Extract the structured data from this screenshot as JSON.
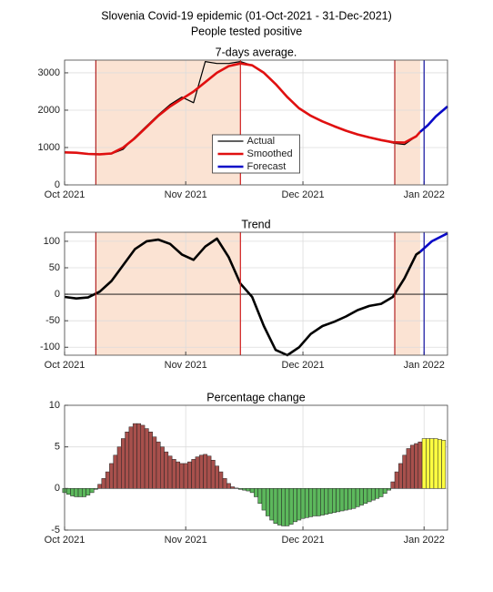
{
  "title": "Slovenia Covid-19 epidemic (01-Oct-2021 - 31-Dec-2021)",
  "subtitle": "People tested positive",
  "chart_data": [
    {
      "type": "line",
      "title": "7-days average.",
      "xlim": [
        0,
        98
      ],
      "ylim": [
        0,
        3340
      ],
      "xticks": [
        {
          "value": 0,
          "label": "Oct 2021"
        },
        {
          "value": 31,
          "label": "Nov 2021"
        },
        {
          "value": 61,
          "label": "Dec 2021"
        },
        {
          "value": 92,
          "label": "Jan 2022"
        }
      ],
      "yticks": [
        0,
        1000,
        2000,
        3000
      ],
      "grid": true,
      "legend": "south",
      "shaded": [
        [
          8,
          45
        ],
        [
          84.5,
          91
        ]
      ],
      "shade_color": "#fbe3d3",
      "vlines": [
        {
          "x": 8,
          "color": "#b22222"
        },
        {
          "x": 45,
          "color": "#d02020"
        },
        {
          "x": 84.5,
          "color": "#b22222"
        },
        {
          "x": 92,
          "color": "#1010a0"
        }
      ],
      "series": [
        {
          "name": "Actual",
          "color": "#000000",
          "width": 1.2,
          "x": [
            0,
            3,
            6,
            9,
            12,
            15,
            18,
            21,
            24,
            27,
            30,
            33,
            36,
            39,
            42,
            45,
            48,
            51,
            54,
            57,
            60,
            63,
            66,
            69,
            72,
            75,
            78,
            81,
            84,
            87,
            90,
            91
          ],
          "values": [
            880,
            860,
            820,
            810,
            830,
            950,
            1280,
            1580,
            1880,
            2150,
            2350,
            2200,
            3300,
            3250,
            3250,
            3300,
            3200,
            3000,
            2700,
            2330,
            2050,
            1850,
            1710,
            1560,
            1440,
            1350,
            1280,
            1200,
            1120,
            1080,
            1300,
            1420
          ]
        },
        {
          "name": "Smoothed",
          "color": "#e01010",
          "width": 2.6,
          "x": [
            0,
            3,
            6,
            9,
            12,
            15,
            18,
            21,
            24,
            27,
            30,
            33,
            36,
            39,
            42,
            45,
            48,
            51,
            54,
            57,
            60,
            63,
            66,
            69,
            72,
            75,
            78,
            81,
            84,
            87,
            90,
            91
          ],
          "values": [
            870,
            860,
            830,
            820,
            840,
            1000,
            1250,
            1550,
            1850,
            2100,
            2300,
            2500,
            2750,
            3000,
            3180,
            3250,
            3200,
            3000,
            2700,
            2350,
            2050,
            1850,
            1700,
            1570,
            1450,
            1350,
            1270,
            1200,
            1140,
            1130,
            1300,
            1420
          ]
        },
        {
          "name": "Forecast",
          "color": "#0a0ac8",
          "width": 2.6,
          "x": [
            91,
            93,
            95,
            98
          ],
          "values": [
            1420,
            1600,
            1830,
            2100
          ]
        }
      ]
    },
    {
      "type": "line",
      "title": "Trend",
      "xlim": [
        0,
        98
      ],
      "ylim": [
        -115,
        117
      ],
      "xticks": [
        {
          "value": 0,
          "label": "Oct 2021"
        },
        {
          "value": 31,
          "label": "Nov 2021"
        },
        {
          "value": 61,
          "label": "Dec 2021"
        },
        {
          "value": 92,
          "label": "Jan 2022"
        }
      ],
      "yticks": [
        -100,
        -50,
        0,
        50,
        100
      ],
      "grid": true,
      "zero_line": 0,
      "shaded": [
        [
          8,
          45
        ],
        [
          84.5,
          91
        ]
      ],
      "shade_color": "#fbe3d3",
      "vlines": [
        {
          "x": 8,
          "color": "#b22222"
        },
        {
          "x": 45,
          "color": "#d02020"
        },
        {
          "x": 84.5,
          "color": "#b22222"
        },
        {
          "x": 92,
          "color": "#1010a0"
        }
      ],
      "series": [
        {
          "color": "#000000",
          "width": 2.6,
          "x": [
            0,
            3,
            6,
            9,
            12,
            15,
            18,
            21,
            24,
            27,
            30,
            33,
            36,
            39,
            42,
            45,
            48,
            51,
            54,
            57,
            60,
            63,
            66,
            69,
            72,
            75,
            78,
            81,
            84,
            87,
            90,
            91
          ],
          "values": [
            -5,
            -8,
            -6,
            5,
            25,
            55,
            85,
            100,
            103,
            95,
            75,
            65,
            90,
            105,
            70,
            20,
            -5,
            -60,
            -105,
            -115,
            -100,
            -75,
            -60,
            -52,
            -42,
            -30,
            -22,
            -18,
            -5,
            30,
            75,
            80
          ]
        },
        {
          "color": "#0a0ac8",
          "width": 2.6,
          "x": [
            91,
            94,
            98
          ],
          "values": [
            80,
            100,
            115
          ]
        }
      ]
    },
    {
      "type": "bar",
      "title": "Percentage change",
      "xlim": [
        0,
        98
      ],
      "ylim": [
        -5,
        10
      ],
      "xticks": [
        {
          "value": 0,
          "label": "Oct 2021"
        },
        {
          "value": 31,
          "label": "Nov 2021"
        },
        {
          "value": 61,
          "label": "Dec 2021"
        },
        {
          "value": 92,
          "label": "Jan 2022"
        }
      ],
      "yticks": [
        -5,
        0,
        5,
        10
      ],
      "grid": true,
      "positive_color": "#a8504c",
      "negative_color": "#5cb85c",
      "series": [
        {
          "x": [
            0,
            1,
            2,
            3,
            4,
            5,
            6,
            7,
            8,
            9,
            10,
            11,
            12,
            13,
            14,
            15,
            16,
            17,
            18,
            19,
            20,
            21,
            22,
            23,
            24,
            25,
            26,
            27,
            28,
            29,
            30,
            31,
            32,
            33,
            34,
            35,
            36,
            37,
            38,
            39,
            40,
            41,
            42,
            43,
            44,
            45,
            46,
            47,
            48,
            49,
            50,
            51,
            52,
            53,
            54,
            55,
            56,
            57,
            58,
            59,
            60,
            61,
            62,
            63,
            64,
            65,
            66,
            67,
            68,
            69,
            70,
            71,
            72,
            73,
            74,
            75,
            76,
            77,
            78,
            79,
            80,
            81,
            82,
            83,
            84,
            85,
            86,
            87,
            88,
            89,
            90,
            91
          ],
          "values": [
            -0.5,
            -0.7,
            -0.9,
            -1,
            -1,
            -1,
            -0.8,
            -0.5,
            -0.1,
            0.5,
            1.2,
            2,
            3,
            4,
            5,
            6,
            6.8,
            7.4,
            7.8,
            7.8,
            7.6,
            7.2,
            6.8,
            6.2,
            5.6,
            5,
            4.4,
            3.9,
            3.5,
            3.2,
            3,
            3,
            3.2,
            3.5,
            3.8,
            4,
            4.1,
            3.9,
            3.4,
            2.7,
            2,
            1.2,
            0.6,
            0.2,
            0.05,
            -0.1,
            -0.2,
            -0.3,
            -0.5,
            -1,
            -1.8,
            -2.6,
            -3.3,
            -3.8,
            -4.2,
            -4.4,
            -4.5,
            -4.5,
            -4.3,
            -4,
            -3.8,
            -3.6,
            -3.5,
            -3.4,
            -3.3,
            -3.3,
            -3.2,
            -3.1,
            -3,
            -2.9,
            -2.8,
            -2.7,
            -2.6,
            -2.5,
            -2.4,
            -2.2,
            -2,
            -1.8,
            -1.6,
            -1.4,
            -1.2,
            -1,
            -0.6,
            -0.2,
            0.8,
            2,
            3,
            4,
            4.8,
            5.2,
            5.4,
            5.6
          ]
        },
        {
          "color": "#ffff40",
          "x": [
            92,
            93,
            94,
            95,
            96,
            97
          ],
          "values": [
            6,
            6,
            6,
            6,
            5.9,
            5.8
          ]
        }
      ]
    }
  ]
}
